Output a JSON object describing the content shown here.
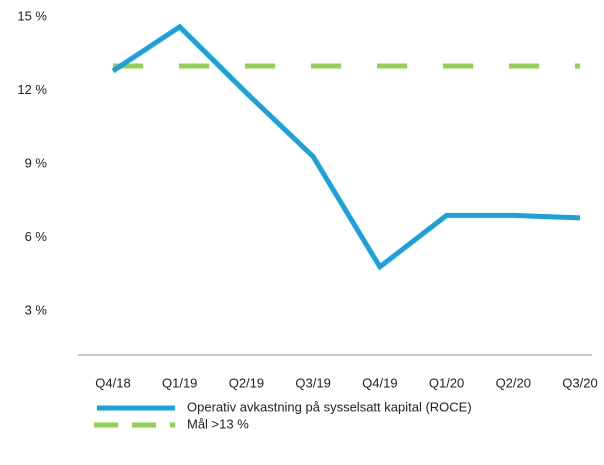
{
  "chart_data": {
    "type": "line",
    "categories": [
      "Q4/18",
      "Q1/19",
      "Q2/19",
      "Q3/19",
      "Q4/19",
      "Q1/20",
      "Q2/20",
      "Q3/20"
    ],
    "series": [
      {
        "name": "Operativ avkastning på sysselsatt kapital (ROCE)",
        "color": "#1ba1dc",
        "values": [
          12.8,
          14.6,
          11.9,
          9.3,
          4.8,
          6.9,
          6.9,
          6.8
        ]
      },
      {
        "name": "Mål >13 %",
        "color": "#92d050",
        "dashed": true,
        "values": [
          13,
          13,
          13,
          13,
          13,
          13,
          13,
          13
        ]
      }
    ],
    "ylim": [
      1.2,
      15
    ],
    "yticks": [
      {
        "value": 3,
        "label": "3 %"
      },
      {
        "value": 6,
        "label": "6 %"
      },
      {
        "value": 9,
        "label": "9 %"
      },
      {
        "value": 12,
        "label": "12 %"
      },
      {
        "value": 15,
        "label": "15 %"
      }
    ],
    "grid": false
  }
}
